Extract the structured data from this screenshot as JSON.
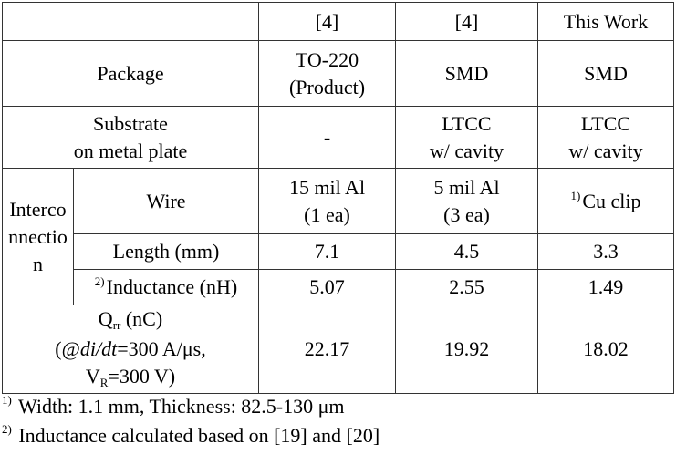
{
  "columns": [
    "",
    "[4]",
    "[4]",
    "This Work"
  ],
  "package": {
    "label": "Package",
    "values": [
      [
        "TO-220",
        "(Product)"
      ],
      [
        "SMD"
      ],
      [
        "SMD"
      ]
    ]
  },
  "substrate": {
    "label_lines": [
      "Substrate",
      "on metal plate"
    ],
    "values": [
      [
        "-"
      ],
      [
        "LTCC",
        "w/ cavity"
      ],
      [
        "LTCC",
        "w/ cavity"
      ]
    ]
  },
  "interconnection": {
    "group_lines": [
      "Interco",
      "nnectio",
      "n"
    ],
    "wire": {
      "label": "Wire",
      "values": [
        [
          "15 mil Al",
          "(1 ea)"
        ],
        [
          "5 mil Al",
          "(3 ea)"
        ],
        [
          "Cu clip"
        ]
      ],
      "footnote_mark_this_work": "1)"
    },
    "length": {
      "label": "Length (mm)",
      "values": [
        "7.1",
        "4.5",
        "3.3"
      ]
    },
    "inductance": {
      "footnote_mark": "2)",
      "label": "Inductance (nH)",
      "values": [
        "5.07",
        "2.55",
        "1.49"
      ]
    }
  },
  "qrr": {
    "label_main": "Q",
    "label_sub": "rr",
    "label_unit": " (nC)",
    "cond_open": "(@",
    "cond_didt": "di/dt",
    "cond_rest": "=300 A/μs,",
    "vr_main": "V",
    "vr_sub": "R",
    "vr_rest": "=300 V)",
    "values": [
      "22.17",
      "19.92",
      "18.02"
    ]
  },
  "footnotes": [
    {
      "mark": "1)",
      "text": " Width: 1.1 mm, Thickness: 82.5-130 μm"
    },
    {
      "mark": "2)",
      "text": " Inductance calculated based on [19] and [20]"
    }
  ]
}
